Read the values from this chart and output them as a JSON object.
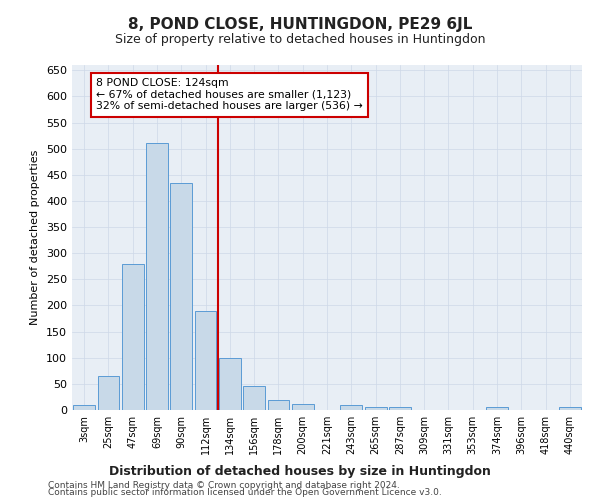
{
  "title": "8, POND CLOSE, HUNTINGDON, PE29 6JL",
  "subtitle": "Size of property relative to detached houses in Huntingdon",
  "xlabel": "Distribution of detached houses by size in Huntingdon",
  "ylabel": "Number of detached properties",
  "categories": [
    "3sqm",
    "25sqm",
    "47sqm",
    "69sqm",
    "90sqm",
    "112sqm",
    "134sqm",
    "156sqm",
    "178sqm",
    "200sqm",
    "221sqm",
    "243sqm",
    "265sqm",
    "287sqm",
    "309sqm",
    "331sqm",
    "353sqm",
    "374sqm",
    "396sqm",
    "418sqm",
    "440sqm"
  ],
  "values": [
    10,
    65,
    280,
    510,
    435,
    190,
    100,
    45,
    20,
    12,
    0,
    10,
    5,
    5,
    0,
    0,
    0,
    5,
    0,
    0,
    5
  ],
  "bar_color": "#c8d9e8",
  "bar_edge_color": "#5b9bd5",
  "vline_color": "#cc0000",
  "vline_index": 5.5,
  "annotation_text": "8 POND CLOSE: 124sqm\n← 67% of detached houses are smaller (1,123)\n32% of semi-detached houses are larger (536) →",
  "annotation_box_color": "#ffffff",
  "annotation_box_edge": "#cc0000",
  "ylim": [
    0,
    660
  ],
  "yticks": [
    0,
    50,
    100,
    150,
    200,
    250,
    300,
    350,
    400,
    450,
    500,
    550,
    600,
    650
  ],
  "grid_color": "#ced8e8",
  "bg_color": "#e8eef5",
  "footer1": "Contains HM Land Registry data © Crown copyright and database right 2024.",
  "footer2": "Contains public sector information licensed under the Open Government Licence v3.0."
}
